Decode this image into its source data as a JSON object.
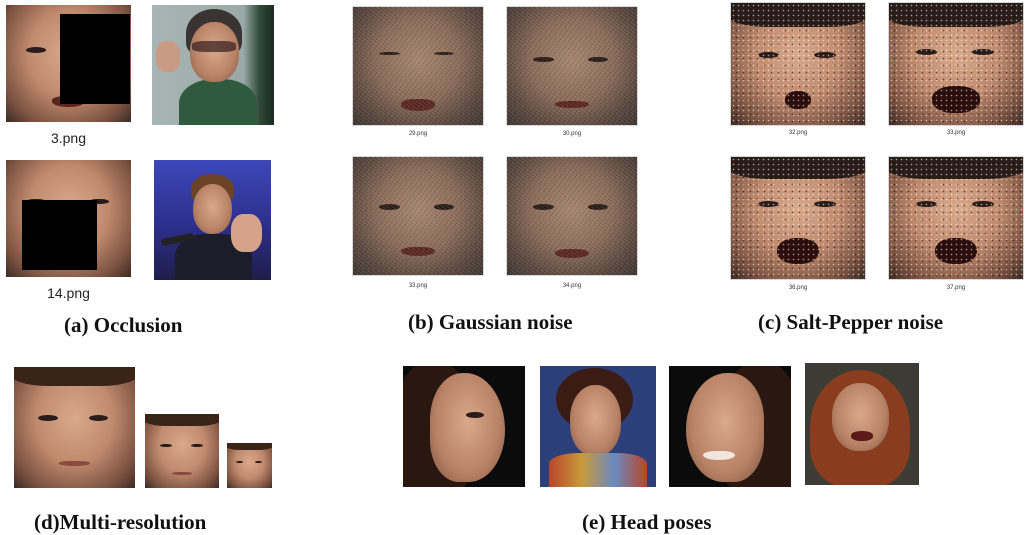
{
  "panels": {
    "occlusion": {
      "caption": "(a) Occlusion",
      "files": [
        "3.png",
        "14.png"
      ]
    },
    "gaussian": {
      "caption": "(b) Gaussian noise",
      "files": [
        "29.png",
        "30.png",
        "33.png",
        "34.png"
      ]
    },
    "saltpepper": {
      "caption": "(c) Salt-Pepper noise",
      "files": [
        "32.png",
        "33.png",
        "36.png",
        "37.png"
      ]
    },
    "multires": {
      "caption": "(d)Multi-resolution"
    },
    "headposes": {
      "caption": "(e) Head poses"
    }
  },
  "colors": {
    "occluder": "#000000",
    "background": "#ffffff"
  },
  "icons": {
    "thumbnail": "face-thumbnail-icon"
  }
}
